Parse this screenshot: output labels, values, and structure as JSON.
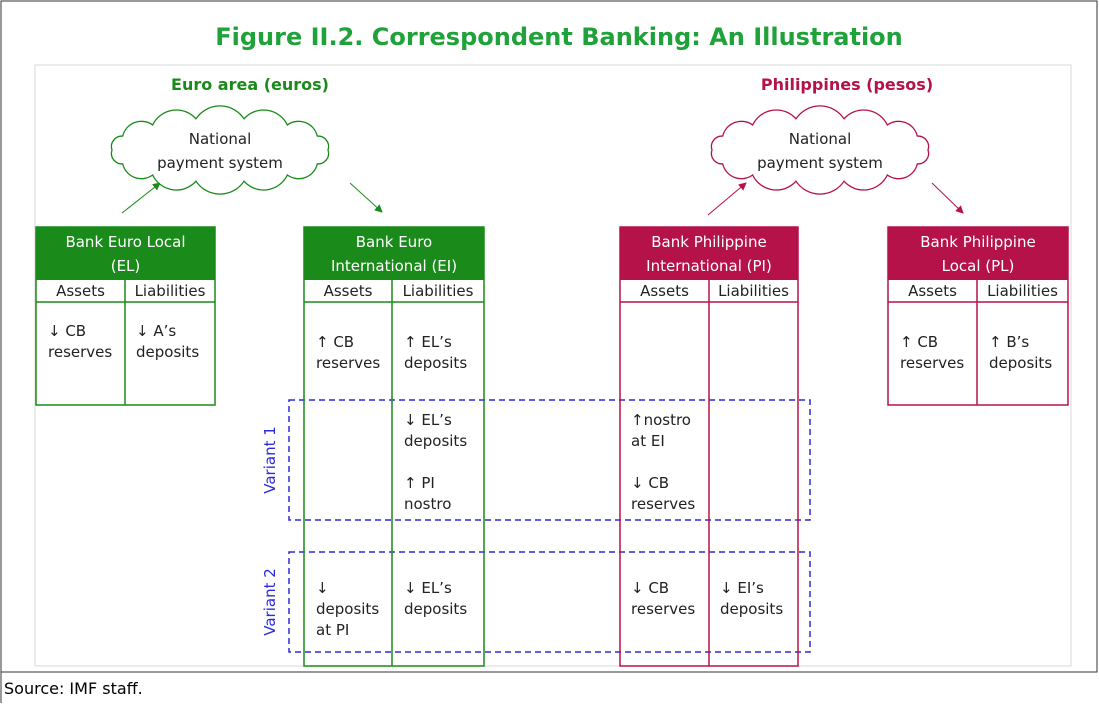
{
  "title": "Figure II.2. Correspondent Banking: An Illustration",
  "regions": [
    "Euro area (euros)",
    "Philippines (pesos)"
  ],
  "clouds": [
    {
      "lines": [
        "National",
        "payment system"
      ]
    },
    {
      "lines": [
        "National",
        "payment system"
      ]
    }
  ],
  "banks": [
    {
      "lines": [
        "Bank Euro Local",
        "(EL)"
      ],
      "columns": [
        "Assets",
        "Liabilities"
      ]
    },
    {
      "lines": [
        "Bank Euro",
        "International (EI)"
      ],
      "columns": [
        "Assets",
        "Liabilities"
      ]
    },
    {
      "lines": [
        "Bank Philippine",
        "International (PI)"
      ],
      "columns": [
        "Assets",
        "Liabilities"
      ]
    },
    {
      "lines": [
        "Bank Philippine",
        "Local (PL)"
      ],
      "columns": [
        "Assets",
        "Liabilities"
      ]
    }
  ],
  "entries": [
    [
      "↓ CB",
      "reserves"
    ],
    [
      "↓ A’s",
      "deposits"
    ],
    [
      "↑ CB",
      "reserves"
    ],
    [
      "↑ B’s",
      "deposits"
    ],
    [
      "↑ CB",
      "reserves"
    ],
    [
      "↑ EL’s",
      "deposits"
    ],
    [
      "↓ EL’s",
      "deposits"
    ],
    [
      "↑ PI",
      "nostro"
    ],
    [
      "↑nostro",
      "at EI"
    ],
    [
      "↓ CB",
      "reserves"
    ],
    [
      "↓",
      "deposits",
      "at PI"
    ],
    [
      "↓ EL’s",
      "deposits"
    ],
    [
      "↓ CB",
      "reserves"
    ],
    [
      "↓ EI’s",
      "deposits"
    ]
  ],
  "variants": [
    "Variant 1",
    "Variant 2"
  ],
  "source": "Source: IMF staff."
}
